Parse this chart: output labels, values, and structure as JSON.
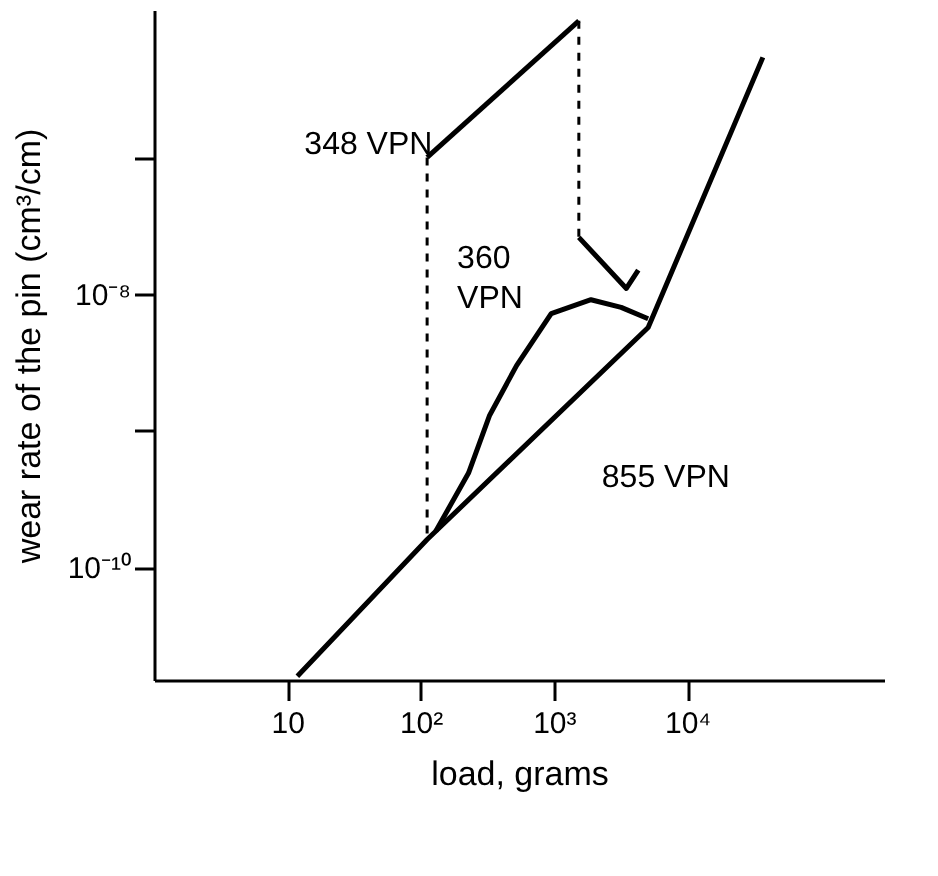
{
  "chart_data": {
    "type": "line",
    "xlabel": "load, grams",
    "ylabel": "wear rate of the pin (cm³/cm)",
    "log": "xy",
    "grid": false,
    "marker": "none",
    "xlim": [
      1,
      300000
    ],
    "ylim": [
      1.5e-11,
      1.2e-06
    ],
    "xticks": [
      10,
      {
        "value": 100,
        "label": "10²"
      },
      {
        "value": 1000,
        "label": "10³"
      },
      {
        "value": 10000,
        "label": "10⁴"
      }
    ],
    "yticks": [
      {
        "value": 1e-10,
        "label": "10⁻¹⁰"
      },
      {
        "value": 1e-09,
        "label": null
      },
      {
        "value": 1e-08,
        "label": "10⁻⁸"
      },
      {
        "value": 1e-07,
        "label": null
      }
    ],
    "series": [
      {
        "color": "#000000",
        "line_style": "solid",
        "x": [
          11.9,
          112,
          5100,
          37000
        ],
        "values": [
          1.6e-11,
          1.6e-10,
          5.7e-09,
          5.4e-07
        ]
      },
      {
        "color": "#000000",
        "line_style": "solid",
        "x": [
          112,
          1540
        ],
        "values": [
          1e-07,
          1e-06
        ]
      },
      {
        "color": "#000000",
        "line_style": "solid",
        "x": [
          1540,
          3500,
          4300
        ],
        "values": [
          2.6e-08,
          1.1e-08,
          1.5e-08
        ]
      },
      {
        "color": "#000000",
        "line_style": "solid",
        "x": [
          130,
          229,
          330,
          525,
          955,
          1900,
          3200,
          5100
        ],
        "values": [
          1.84e-10,
          4.9e-10,
          1.3e-09,
          3e-09,
          7.2e-09,
          9.1e-09,
          8e-09,
          6.6e-09
        ]
      },
      {
        "color": "#000000",
        "line_style": "dashed",
        "x": [
          112,
          112
        ],
        "values": [
          1e-07,
          1.6e-10
        ]
      },
      {
        "color": "#000000",
        "line_style": "dashed",
        "x": [
          1540,
          1540
        ],
        "values": [
          1e-06,
          2.6e-08
        ]
      }
    ],
    "annotations": [
      {
        "text": "348 VPN",
        "x": 245,
        "y": 2e-07
      },
      {
        "text": "360\nVPN",
        "x": 890,
        "y": 6.5e-09
      },
      {
        "text": "855 VPN",
        "x": 1230,
        "y": 1.5e-09
      }
    ]
  }
}
